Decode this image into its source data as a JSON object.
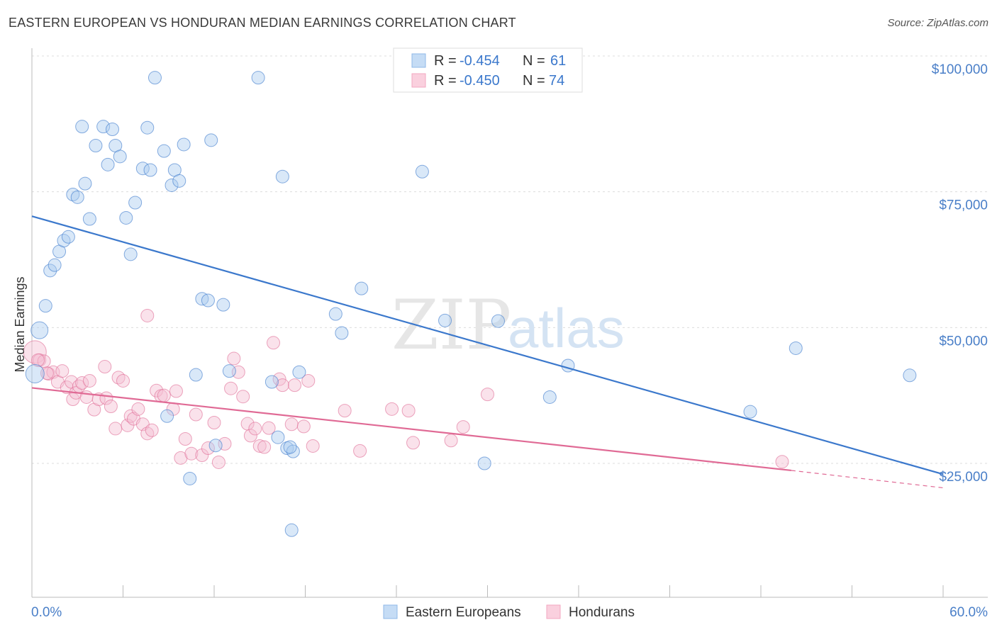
{
  "header": {
    "title": "EASTERN EUROPEAN VS HONDURAN MEDIAN EARNINGS CORRELATION CHART",
    "source": "Source: ZipAtlas.com"
  },
  "watermark": {
    "zip": "ZIP",
    "atlas": "atlas"
  },
  "legend_top": {
    "rows": [
      {
        "r_label": "R =",
        "r_value": "-0.454",
        "n_label": "N =",
        "n_value": "61",
        "color": "#8fb8e8"
      },
      {
        "r_label": "R =",
        "r_value": "-0.450",
        "n_label": "N =",
        "n_value": "74",
        "color": "#f3a7c0"
      }
    ]
  },
  "legend_bottom": {
    "items": [
      {
        "label": "Eastern Europeans",
        "color": "#8fb8e8"
      },
      {
        "label": "Hondurans",
        "color": "#f3a7c0"
      }
    ]
  },
  "chart_data": {
    "type": "scatter",
    "title": "EASTERN EUROPEAN VS HONDURAN MEDIAN EARNINGS CORRELATION CHART",
    "xlabel": "",
    "ylabel": "Median Earnings",
    "xlim": [
      0,
      60
    ],
    "ylim": [
      0,
      105000
    ],
    "x_tick_labels": [
      "0.0%",
      "60.0%"
    ],
    "y_ticks": [
      25000,
      50000,
      75000,
      100000
    ],
    "y_tick_labels": [
      "$25,000",
      "$50,000",
      "$75,000",
      "$100,000"
    ],
    "grid": "horizontal dashed",
    "series": [
      {
        "name": "Eastern Europeans",
        "color": "#3b78cc",
        "fill": "#aaccf0",
        "trend": {
          "x": [
            0,
            60
          ],
          "y": [
            70500,
            23000
          ]
        },
        "points": [
          [
            0.2,
            41500
          ],
          [
            0.5,
            49500
          ],
          [
            0.9,
            54000
          ],
          [
            1.2,
            60500
          ],
          [
            1.5,
            61500
          ],
          [
            1.8,
            64000
          ],
          [
            2.1,
            66000
          ],
          [
            2.4,
            66700
          ],
          [
            2.7,
            74500
          ],
          [
            3.0,
            74000
          ],
          [
            3.3,
            87000
          ],
          [
            3.5,
            76500
          ],
          [
            3.8,
            70000
          ],
          [
            4.2,
            83500
          ],
          [
            4.7,
            87000
          ],
          [
            5.0,
            80000
          ],
          [
            5.3,
            86500
          ],
          [
            5.5,
            83500
          ],
          [
            5.8,
            81500
          ],
          [
            6.2,
            70200
          ],
          [
            6.5,
            63500
          ],
          [
            6.8,
            73000
          ],
          [
            7.3,
            79300
          ],
          [
            7.6,
            86800
          ],
          [
            7.8,
            79000
          ],
          [
            8.1,
            96000
          ],
          [
            8.7,
            82500
          ],
          [
            9.2,
            76200
          ],
          [
            9.4,
            79000
          ],
          [
            9.7,
            77000
          ],
          [
            10.0,
            83700
          ],
          [
            10.4,
            22200
          ],
          [
            10.8,
            41300
          ],
          [
            11.2,
            55300
          ],
          [
            11.6,
            55000
          ],
          [
            11.8,
            84500
          ],
          [
            12.1,
            28300
          ],
          [
            12.6,
            54200
          ],
          [
            13.0,
            42000
          ],
          [
            14.9,
            96000
          ],
          [
            15.8,
            40000
          ],
          [
            16.2,
            29800
          ],
          [
            16.5,
            77800
          ],
          [
            16.8,
            27800
          ],
          [
            17.2,
            27200
          ],
          [
            17.6,
            41800
          ],
          [
            17.1,
            12700
          ],
          [
            20.0,
            52500
          ],
          [
            20.4,
            49000
          ],
          [
            21.7,
            57200
          ],
          [
            25.7,
            78700
          ],
          [
            27.2,
            51300
          ],
          [
            29.8,
            25000
          ],
          [
            30.7,
            51200
          ],
          [
            34.1,
            37200
          ],
          [
            35.3,
            43000
          ],
          [
            47.3,
            34500
          ],
          [
            50.3,
            46200
          ],
          [
            57.8,
            41200
          ],
          [
            8.9,
            33700
          ],
          [
            17.0,
            28000
          ]
        ]
      },
      {
        "name": "Hondurans",
        "color": "#e06a95",
        "fill": "#f5bfd2",
        "trend": {
          "x": [
            0,
            50
          ],
          "y": [
            38900,
            23700
          ]
        },
        "trend_dashed": {
          "x": [
            50,
            60
          ],
          "y": [
            23700,
            20500
          ]
        },
        "points": [
          [
            0.2,
            45500
          ],
          [
            0.5,
            44000
          ],
          [
            0.8,
            43800
          ],
          [
            1.1,
            41500
          ],
          [
            1.4,
            41800
          ],
          [
            1.7,
            40000
          ],
          [
            2.0,
            42000
          ],
          [
            2.3,
            39000
          ],
          [
            2.6,
            40000
          ],
          [
            2.7,
            36800
          ],
          [
            2.9,
            38000
          ],
          [
            3.1,
            39200
          ],
          [
            3.3,
            39800
          ],
          [
            3.6,
            37200
          ],
          [
            3.8,
            40200
          ],
          [
            4.1,
            34900
          ],
          [
            4.4,
            36800
          ],
          [
            4.8,
            42800
          ],
          [
            4.9,
            37000
          ],
          [
            5.2,
            35500
          ],
          [
            5.5,
            31400
          ],
          [
            5.7,
            40800
          ],
          [
            6.0,
            40200
          ],
          [
            6.3,
            32000
          ],
          [
            6.5,
            33700
          ],
          [
            6.7,
            33200
          ],
          [
            7.0,
            35000
          ],
          [
            7.3,
            32200
          ],
          [
            7.6,
            52200
          ],
          [
            7.6,
            30500
          ],
          [
            7.9,
            31100
          ],
          [
            8.2,
            38400
          ],
          [
            8.5,
            37400
          ],
          [
            8.7,
            37500
          ],
          [
            9.3,
            35000
          ],
          [
            9.5,
            38300
          ],
          [
            9.8,
            26000
          ],
          [
            10.1,
            29500
          ],
          [
            10.5,
            26800
          ],
          [
            10.8,
            34000
          ],
          [
            11.2,
            26500
          ],
          [
            11.6,
            27800
          ],
          [
            12.0,
            32500
          ],
          [
            12.3,
            25200
          ],
          [
            12.7,
            28600
          ],
          [
            13.1,
            38800
          ],
          [
            13.3,
            44300
          ],
          [
            13.6,
            41800
          ],
          [
            13.9,
            37300
          ],
          [
            14.2,
            32300
          ],
          [
            14.4,
            30100
          ],
          [
            14.7,
            31400
          ],
          [
            15.0,
            28200
          ],
          [
            15.3,
            28000
          ],
          [
            15.6,
            31500
          ],
          [
            15.9,
            47200
          ],
          [
            16.3,
            40500
          ],
          [
            16.5,
            39400
          ],
          [
            17.1,
            32200
          ],
          [
            17.3,
            39400
          ],
          [
            17.9,
            31800
          ],
          [
            18.2,
            40200
          ],
          [
            18.5,
            28200
          ],
          [
            20.6,
            34700
          ],
          [
            21.6,
            27300
          ],
          [
            23.7,
            35000
          ],
          [
            24.8,
            34700
          ],
          [
            25.1,
            28800
          ],
          [
            27.6,
            29200
          ],
          [
            28.4,
            31700
          ],
          [
            30.0,
            37700
          ],
          [
            49.4,
            25300
          ],
          [
            0.4,
            44000
          ],
          [
            1.0,
            41600
          ]
        ]
      }
    ]
  }
}
